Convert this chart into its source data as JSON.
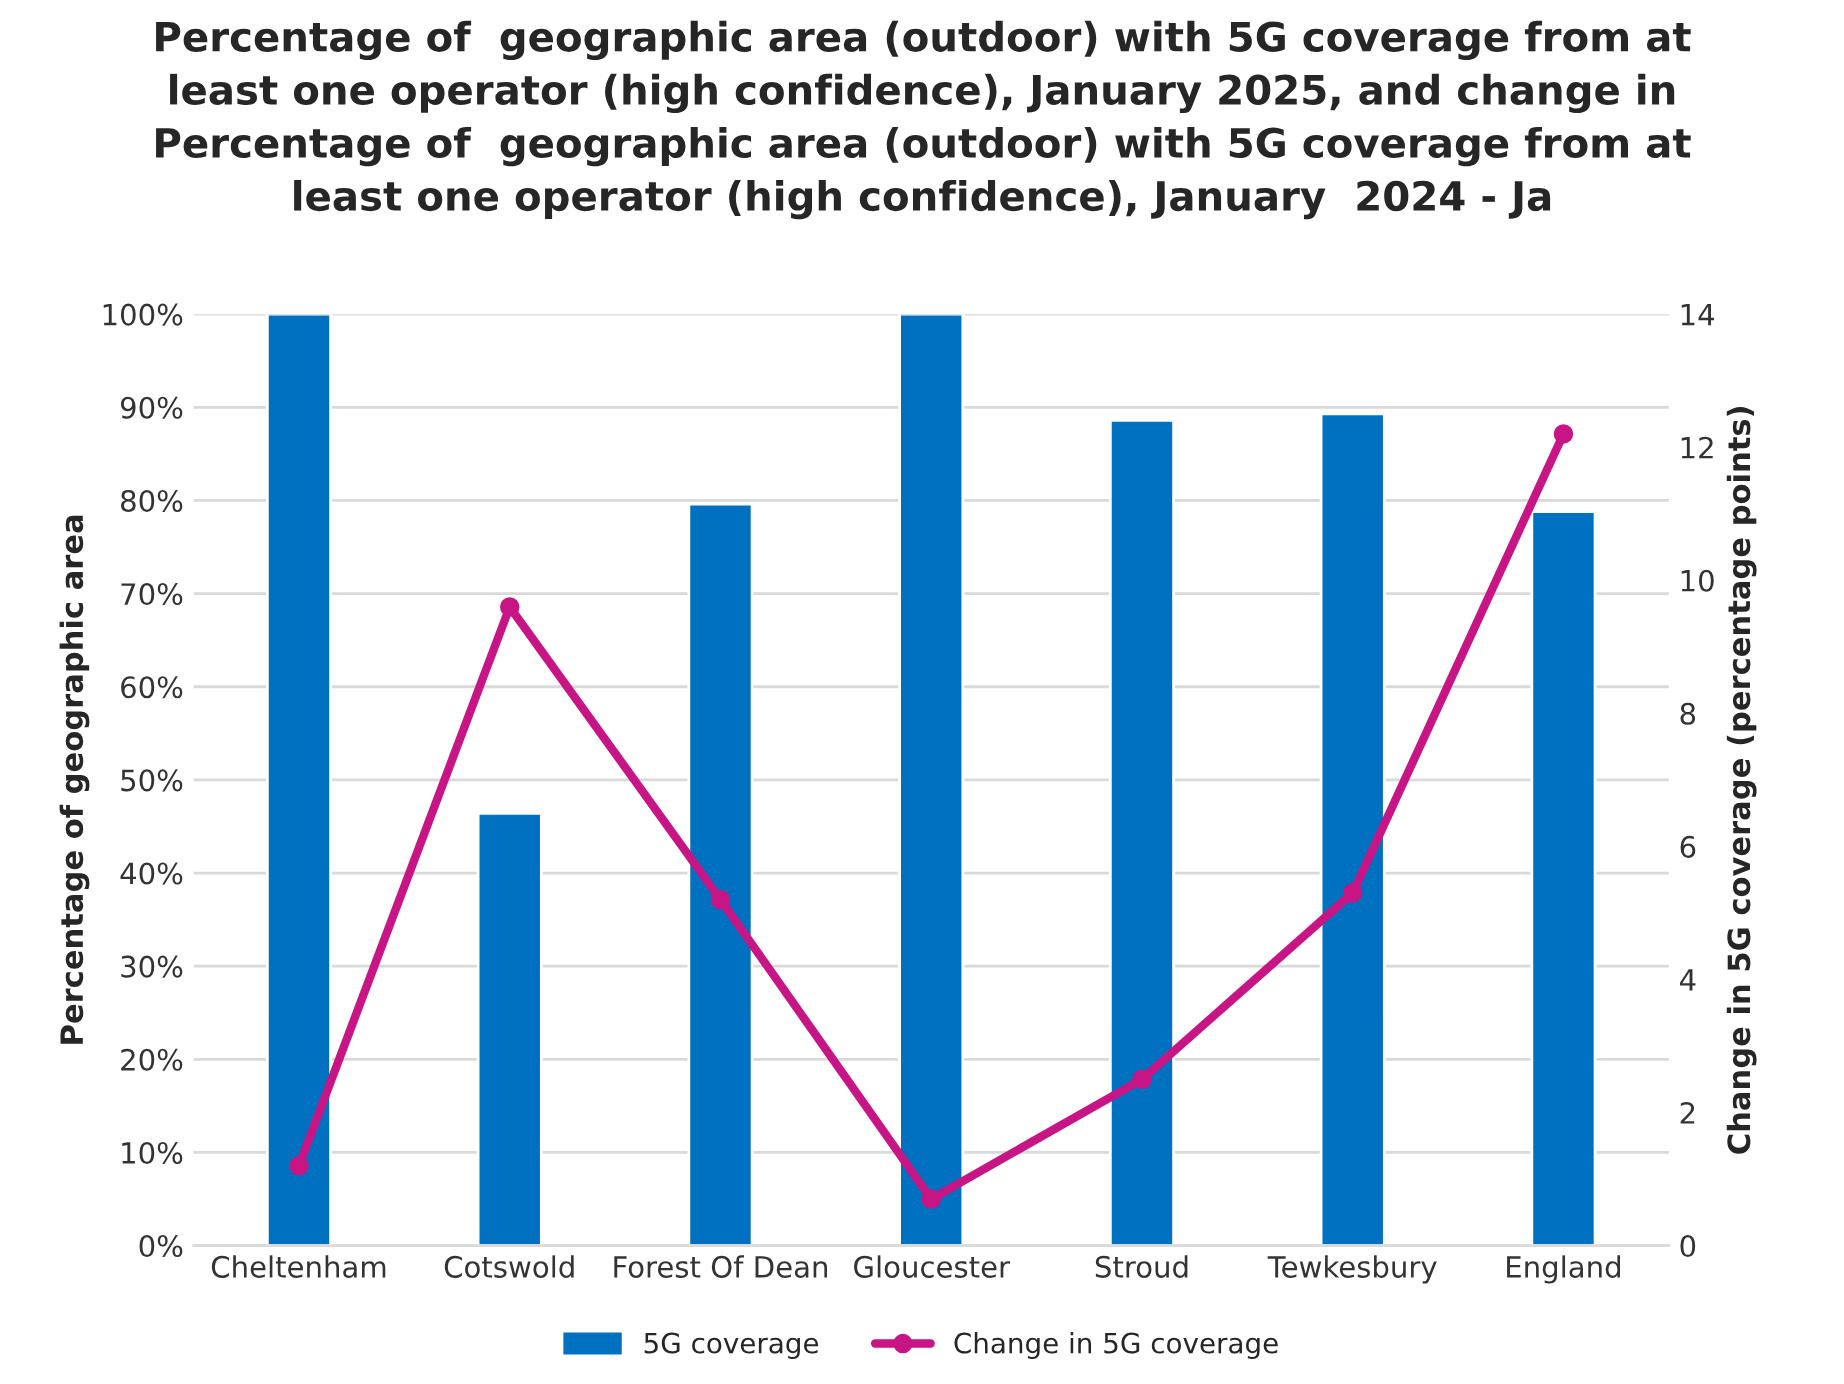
{
  "chart_data": {
    "type": "bar",
    "title": "Percentage of  geographic area (outdoor) with 5G coverage from at\nleast one operator (high confidence), January 2025, and change in\nPercentage of  geographic area (outdoor) with 5G coverage from at\nleast one operator (high confidence), January  2024 - Ja",
    "ylabel": "Percentage of geographic area",
    "y2label": "Change in 5G coverage (percentage points)",
    "categories": [
      "Cheltenham",
      "Cotswold",
      "Forest Of Dean",
      "Gloucester",
      "Stroud",
      "Tewkesbury",
      "England"
    ],
    "series": [
      {
        "name": "5G coverage",
        "color": "#0070c0",
        "values": [
          100,
          46.4,
          79.6,
          100,
          88.6,
          89.3,
          78.8
        ]
      },
      {
        "name": "Change in 5G coverage",
        "type": "line",
        "axis": "y2",
        "color": "#c71585",
        "marker": "circle",
        "values": [
          1.2,
          9.6,
          5.2,
          0.7,
          2.5,
          5.3,
          12.2
        ]
      }
    ],
    "ylim": [
      0,
      100
    ],
    "yticks": [
      {
        "value": 0,
        "label": "0%"
      },
      {
        "value": 10,
        "label": "10%"
      },
      {
        "value": 20,
        "label": "20%"
      },
      {
        "value": 30,
        "label": "30%"
      },
      {
        "value": 40,
        "label": "40%"
      },
      {
        "value": 50,
        "label": "50%"
      },
      {
        "value": 60,
        "label": "60%"
      },
      {
        "value": 70,
        "label": "70%"
      },
      {
        "value": 80,
        "label": "80%"
      },
      {
        "value": 90,
        "label": "90%"
      },
      {
        "value": 100,
        "label": "100%"
      }
    ],
    "y2lim": [
      0,
      14
    ],
    "y2ticks": [
      0,
      2,
      4,
      6,
      8,
      10,
      12,
      14
    ],
    "grid": "y",
    "legend": "bottom"
  }
}
